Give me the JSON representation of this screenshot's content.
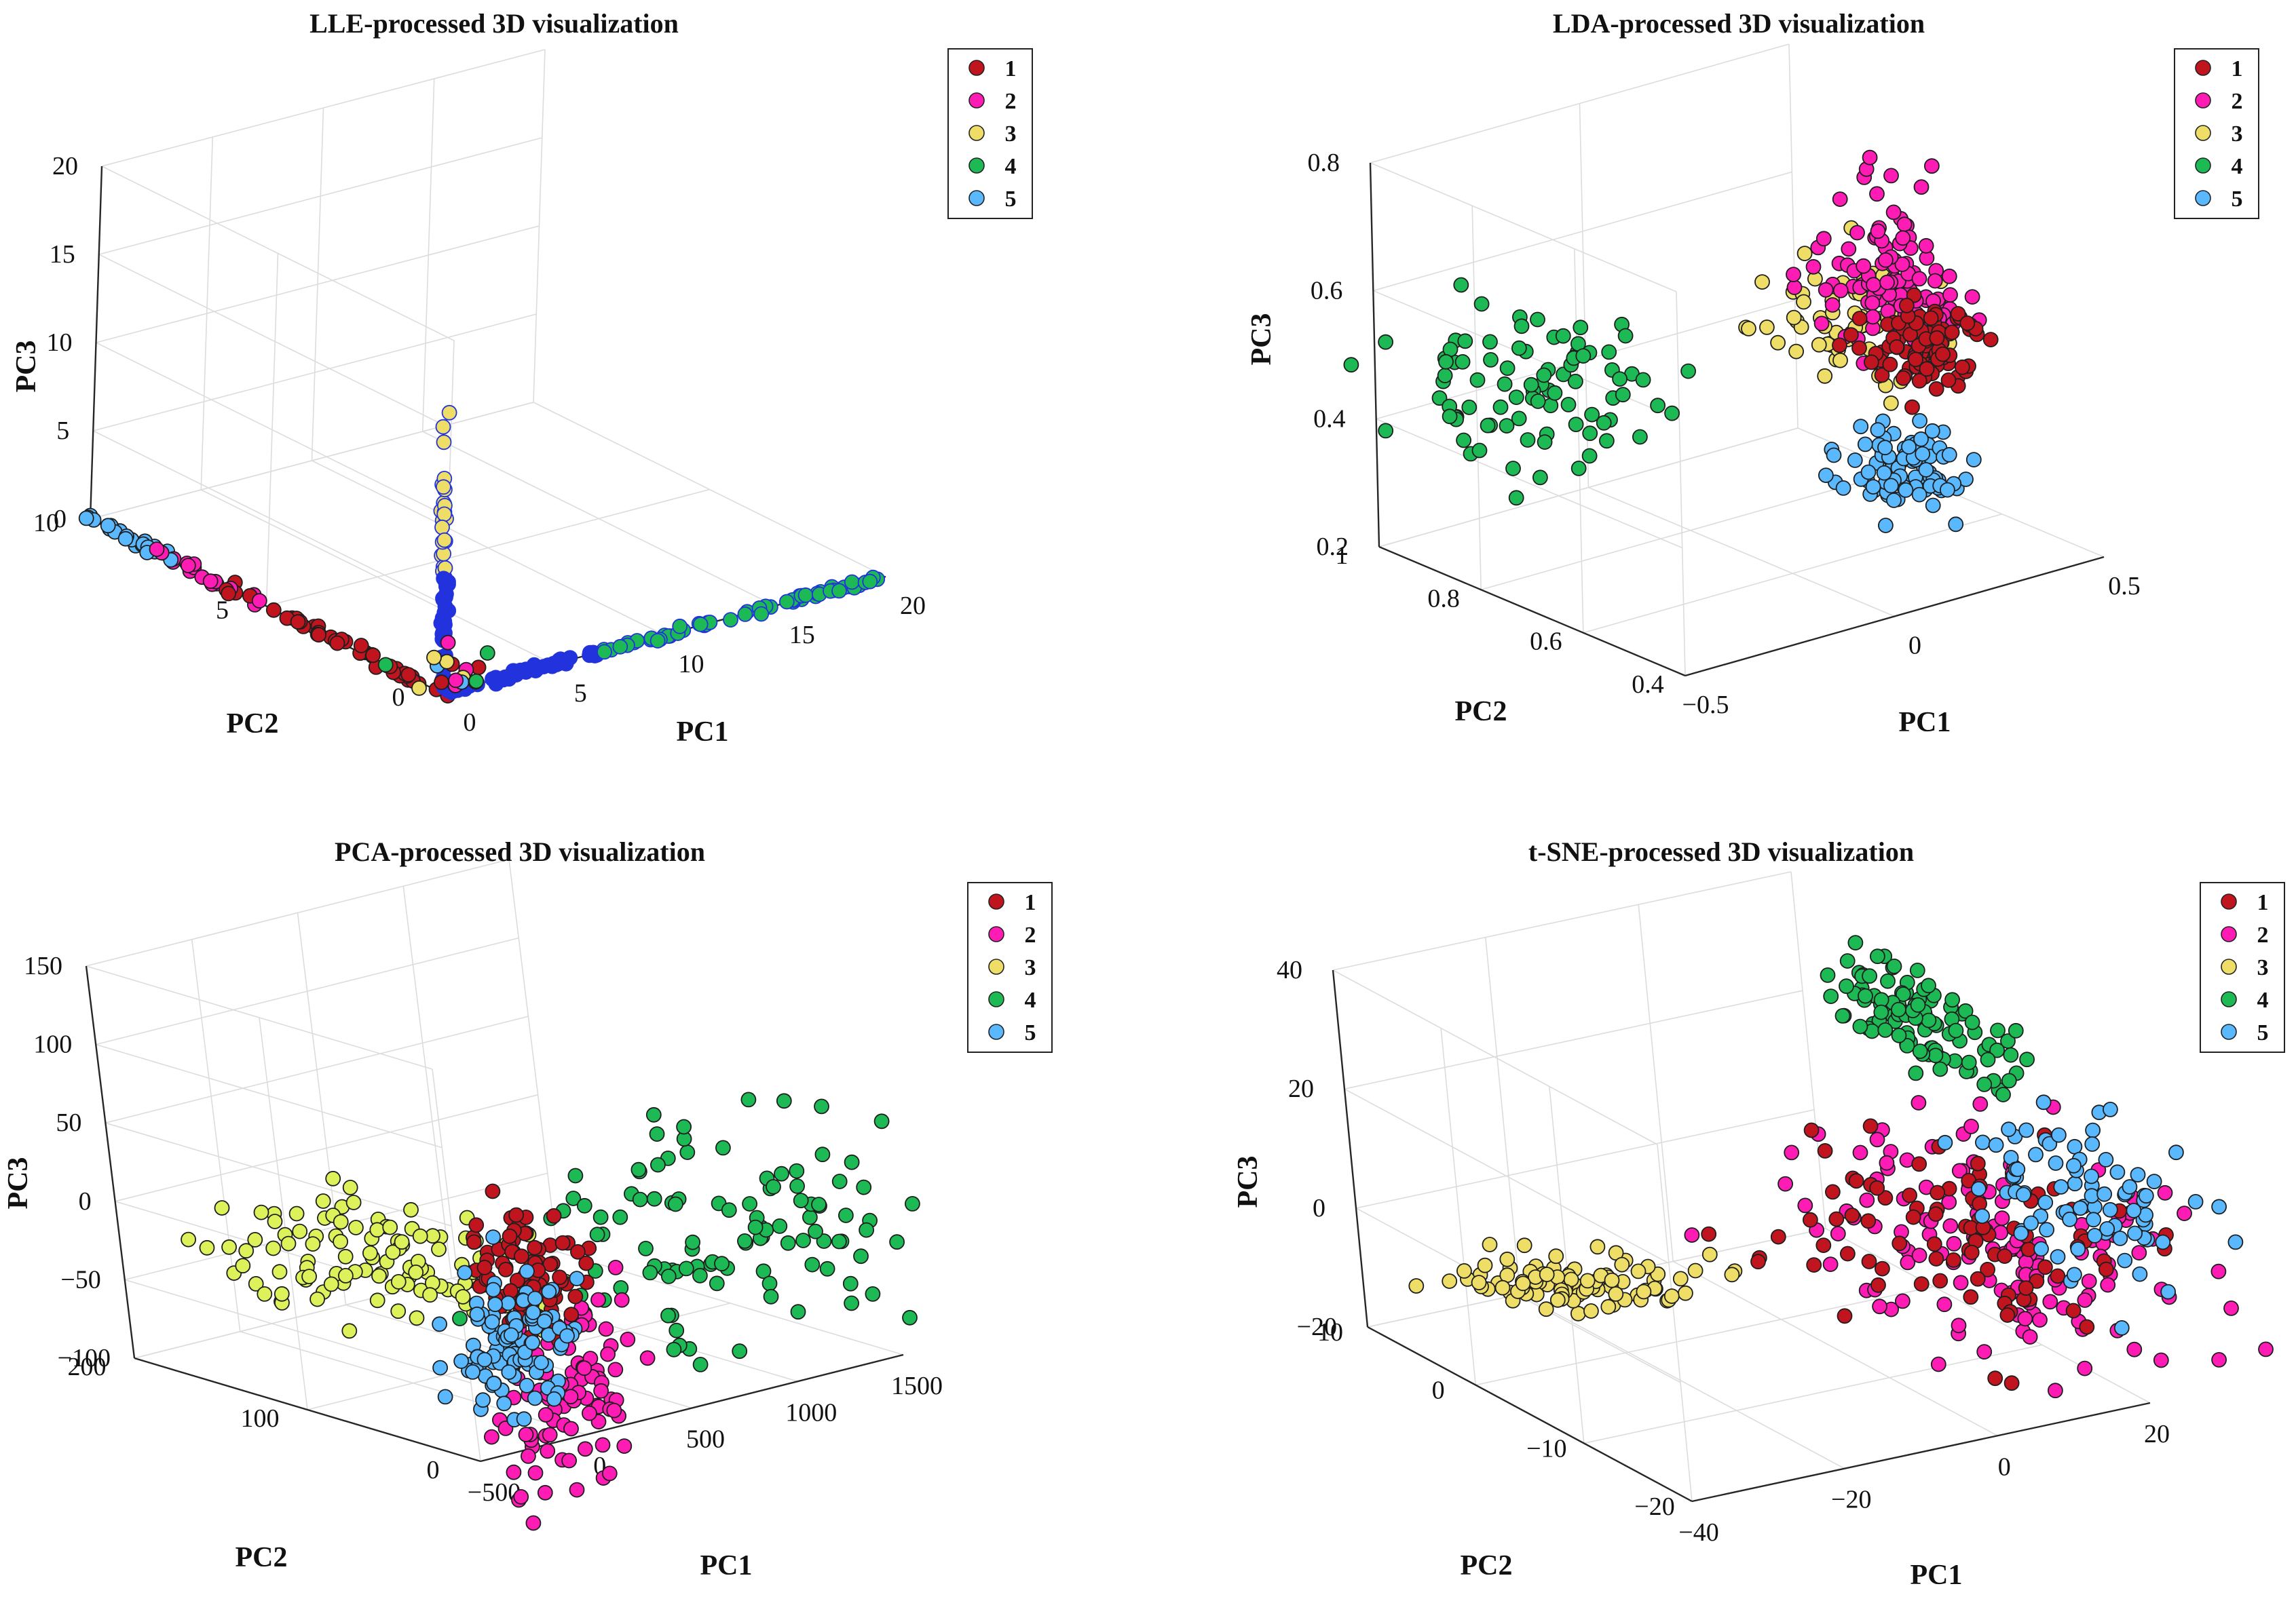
{
  "figure": {
    "description_visible": false
  },
  "chart_data": [
    {
      "type": "scatter3d",
      "title": "LLE-processed 3D visualization",
      "xlabel": "PC1",
      "ylabel": "PC2",
      "zlabel": "PC3",
      "xlim": [
        0,
        20
      ],
      "ylim": [
        0,
        10
      ],
      "zlim": [
        0,
        20
      ],
      "xticks": [
        "0",
        "5",
        "10",
        "15",
        "20"
      ],
      "yticks": [
        "0",
        "5",
        "10"
      ],
      "zticks": [
        "0",
        "5",
        "10",
        "15",
        "20"
      ],
      "legend": [
        "1",
        "2",
        "3",
        "4",
        "5"
      ],
      "legend_position": "top-right",
      "grid": true
    },
    {
      "type": "scatter3d",
      "title": "LDA-processed 3D visualization",
      "xlabel": "PC1",
      "ylabel": "PC2",
      "zlabel": "PC3",
      "xlim": [
        -0.5,
        0.5
      ],
      "ylim": [
        0.4,
        1
      ],
      "zlim": [
        0.2,
        0.8
      ],
      "xticks": [
        "−0.5",
        "0",
        "0.5"
      ],
      "yticks": [
        "0.4",
        "0.6",
        "0.8",
        "1"
      ],
      "zticks": [
        "0.2",
        "0.4",
        "0.6",
        "0.8"
      ],
      "legend": [
        "1",
        "2",
        "3",
        "4",
        "5"
      ],
      "legend_position": "top-right",
      "grid": true
    },
    {
      "type": "scatter3d",
      "title": "PCA-processed 3D visualization",
      "xlabel": "PC1",
      "ylabel": "PC2",
      "zlabel": "PC3",
      "xlim": [
        -500,
        1500
      ],
      "ylim": [
        0,
        200
      ],
      "zlim": [
        -100,
        150
      ],
      "xticks": [
        "−500",
        "0",
        "500",
        "1000",
        "1500"
      ],
      "yticks": [
        "0",
        "100",
        "200"
      ],
      "zticks": [
        "−100",
        "−50",
        "0",
        "50",
        "100",
        "150"
      ],
      "legend": [
        "1",
        "2",
        "3",
        "4",
        "5"
      ],
      "legend_position": "top-right",
      "grid": true
    },
    {
      "type": "scatter3d",
      "title": "t-SNE-processed 3D visualization",
      "xlabel": "PC1",
      "ylabel": "PC2",
      "zlabel": "PC3",
      "xlim": [
        -40,
        20
      ],
      "ylim": [
        -20,
        10
      ],
      "zlim": [
        -20,
        40
      ],
      "xticks": [
        "−40",
        "−20",
        "0",
        "20"
      ],
      "yticks": [
        "−20",
        "−10",
        "0",
        "10"
      ],
      "zticks": [
        "−20",
        "0",
        "20",
        "40"
      ],
      "legend": [
        "1",
        "2",
        "3",
        "4",
        "5"
      ],
      "legend_position": "top-right",
      "grid": true
    }
  ],
  "class_colors": [
    "#c0141e",
    "#ff1cb4",
    "#eedd66",
    "#1db954",
    "#5ab8ff"
  ],
  "pca_class3_color": "#ddf25a",
  "lle_line_color": "#2233dd"
}
